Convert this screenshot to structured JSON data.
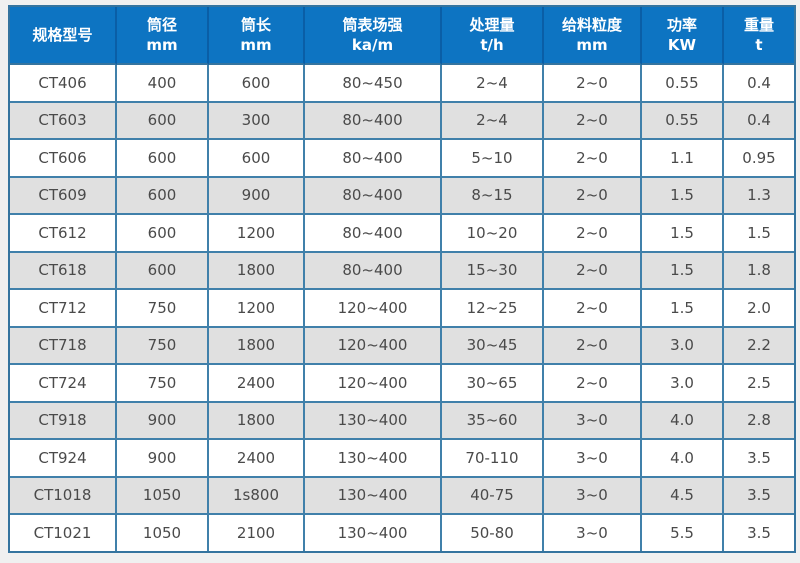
{
  "page": {
    "background_color": "#f0f0f0"
  },
  "colors": {
    "header_bg": "#0d74c2",
    "header_divider": "#0a5ea6",
    "grid_border": "#4080aa",
    "outer_border": "#35749f",
    "stripe_row_bg": "#e0e0e0",
    "plain_row_bg": "#ffffff",
    "header_text": "#ffffff",
    "body_text": "#4a4a4a"
  },
  "chart_data": {
    "type": "table",
    "title": "",
    "legend_position": "none",
    "grid": true,
    "columns": [
      {
        "label": "规格型号",
        "unit": ""
      },
      {
        "label": "筒径",
        "unit": "mm"
      },
      {
        "label": "筒长",
        "unit": "mm"
      },
      {
        "label": "筒表场强",
        "unit": "ka/m"
      },
      {
        "label": "处理量",
        "unit": "t/h"
      },
      {
        "label": "给料粒度",
        "unit": "mm"
      },
      {
        "label": "功率",
        "unit": "KW"
      },
      {
        "label": "重量",
        "unit": "t"
      }
    ],
    "rows": [
      [
        "CT406",
        "400",
        "600",
        "80~450",
        "2~4",
        "2~0",
        "0.55",
        "0.4"
      ],
      [
        "CT603",
        "600",
        "300",
        "80~400",
        "2~4",
        "2~0",
        "0.55",
        "0.4"
      ],
      [
        "CT606",
        "600",
        "600",
        "80~400",
        "5~10",
        "2~0",
        "1.1",
        "0.95"
      ],
      [
        "CT609",
        "600",
        "900",
        "80~400",
        "8~15",
        "2~0",
        "1.5",
        "1.3"
      ],
      [
        "CT612",
        "600",
        "1200",
        "80~400",
        "10~20",
        "2~0",
        "1.5",
        "1.5"
      ],
      [
        "CT618",
        "600",
        "1800",
        "80~400",
        "15~30",
        "2~0",
        "1.5",
        "1.8"
      ],
      [
        "CT712",
        "750",
        "1200",
        "120~400",
        "12~25",
        "2~0",
        "1.5",
        "2.0"
      ],
      [
        "CT718",
        "750",
        "1800",
        "120~400",
        "30~45",
        "2~0",
        "3.0",
        "2.2"
      ],
      [
        "CT724",
        "750",
        "2400",
        "120~400",
        "30~65",
        "2~0",
        "3.0",
        "2.5"
      ],
      [
        "CT918",
        "900",
        "1800",
        "130~400",
        "35~60",
        "3~0",
        "4.0",
        "2.8"
      ],
      [
        "CT924",
        "900",
        "2400",
        "130~400",
        "70-110",
        "3~0",
        "4.0",
        "3.5"
      ],
      [
        "CT1018",
        "1050",
        "1s800",
        "130~400",
        "40-75",
        "3~0",
        "4.5",
        "3.5"
      ],
      [
        "CT1021",
        "1050",
        "2100",
        "130~400",
        "50-80",
        "3~0",
        "5.5",
        "3.5"
      ]
    ]
  }
}
